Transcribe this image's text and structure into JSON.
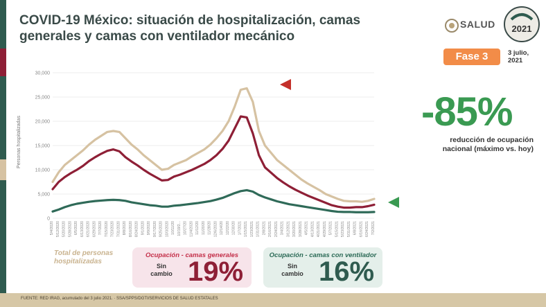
{
  "header": {
    "title": "COVID-19 México: situación de hospitalización, camas generales y camas con ventilador mecánico",
    "logo_text": "SALUD",
    "phase": "Fase 3",
    "date_line1": "3 julio,",
    "date_line2": "2021"
  },
  "summary": {
    "big_percent": "-85%",
    "reduction_text": "reducción de ocupación nacional (máximo vs. hoy)"
  },
  "legend": {
    "total_label": "Total de personas hospitalizadas",
    "general": {
      "title": "Ocupación - camas generales",
      "sub": "Sin cambio",
      "pct": "19%"
    },
    "ventilator": {
      "title": "Ocupación - camas con ventilador",
      "sub": "Sin cambio",
      "pct": "16%"
    }
  },
  "footer": {
    "source": "FUENTE: RED IRAG, acumulado del 3 julio 2021. · SSA/SPPS/DGTI/SERVICIOS DE SALUD ESTATALES"
  },
  "colors": {
    "total": "#d6c2a2",
    "general": "#8e1f36",
    "ventilator": "#2f6a58",
    "bar_green": "#2f6a58",
    "accent_red": "#c4302a",
    "accent_green": "#3a9a52"
  },
  "chart_data": {
    "type": "line",
    "ylabel": "Personas hospitalizadas",
    "ylim": [
      0,
      30000
    ],
    "yticks": [
      "0",
      "5,000",
      "10,000",
      "15,000",
      "20,000",
      "25,000",
      "30,000"
    ],
    "x": [
      "5/4/2020",
      "5/12/2020",
      "5/20/2020",
      "5/28/2020",
      "6/5/2020",
      "6/13/2020",
      "6/21/2020",
      "6/29/2020",
      "7/7/2020",
      "7/15/2020",
      "7/23/2020",
      "7/31/2020",
      "8/8/2020",
      "8/16/2020",
      "8/24/2020",
      "9/1/2020",
      "9/9/2020",
      "9/17/2020",
      "9/25/2020",
      "10/3/2020",
      "10/11/20",
      "10/19/2...",
      "10/27/20",
      "11/4/2020",
      "11/12/20",
      "11/20/20",
      "11/28/20",
      "12/6/2020",
      "12/14/20",
      "12/22/20",
      "12/30/20",
      "1/7/2021",
      "1/15/2021",
      "1/23/2021",
      "1/31/2021",
      "2/8/2021",
      "2/16/2021",
      "2/24/2021",
      "3/4/2021",
      "3/12/2021",
      "3/20/2021",
      "3/28/2021",
      "4/5/2021",
      "4/13/2021",
      "4/21/2021",
      "4/29/2021",
      "5/7/2021",
      "5/15/2021",
      "5/23/2021",
      "5/31/2021",
      "6/8/2021",
      "6/16/2021",
      "6/24/2021",
      "7/2/2021"
    ],
    "series": [
      {
        "name": "Total de personas hospitalizadas",
        "values": [
          7500,
          9500,
          11000,
          12000,
          13000,
          14000,
          15200,
          16200,
          17000,
          17800,
          18000,
          17800,
          16500,
          15200,
          14200,
          13000,
          12000,
          11000,
          10000,
          10200,
          11000,
          11500,
          12000,
          12800,
          13500,
          14200,
          15200,
          16500,
          18000,
          20000,
          23000,
          26500,
          26800,
          24000,
          18000,
          15000,
          13500,
          12000,
          11000,
          10000,
          9000,
          8000,
          7200,
          6500,
          5800,
          5000,
          4500,
          4000,
          3600,
          3500,
          3500,
          3400,
          3600,
          4000
        ]
      },
      {
        "name": "Ocupación - camas generales",
        "values": [
          6000,
          7500,
          8500,
          9300,
          10000,
          10800,
          11800,
          12600,
          13300,
          13900,
          14200,
          13800,
          12600,
          11700,
          10900,
          10000,
          9200,
          8500,
          7800,
          7900,
          8600,
          9000,
          9500,
          10000,
          10600,
          11200,
          12000,
          13000,
          14300,
          16000,
          18500,
          21000,
          20800,
          17500,
          13000,
          10500,
          9400,
          8300,
          7400,
          6600,
          5900,
          5300,
          4700,
          4200,
          3700,
          3200,
          2700,
          2400,
          2200,
          2200,
          2300,
          2300,
          2500,
          2800
        ]
      },
      {
        "name": "Ocupación - camas con ventilador",
        "values": [
          1400,
          1800,
          2300,
          2700,
          3000,
          3200,
          3400,
          3550,
          3650,
          3750,
          3800,
          3750,
          3600,
          3300,
          3100,
          2900,
          2700,
          2600,
          2400,
          2400,
          2600,
          2700,
          2850,
          3000,
          3150,
          3350,
          3550,
          3850,
          4200,
          4700,
          5200,
          5600,
          5800,
          5500,
          4800,
          4300,
          3900,
          3500,
          3200,
          2900,
          2700,
          2500,
          2300,
          2100,
          1900,
          1700,
          1500,
          1350,
          1300,
          1300,
          1250,
          1250,
          1250,
          1300
        ]
      }
    ]
  }
}
